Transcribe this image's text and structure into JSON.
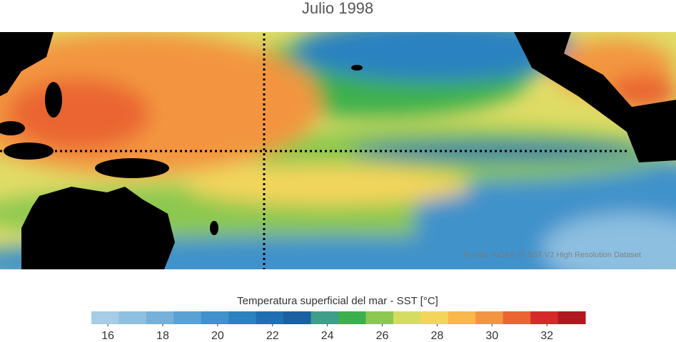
{
  "title": "Julio 1998",
  "source": "Fuente: NOAA OI SST V2 High Resolution Dataset",
  "colorbar": {
    "label": "Temperatura superficial del mar - SST  [°C]",
    "lim": [
      15.4,
      33.4
    ],
    "colors": [
      "#a6cce6",
      "#8dbfe0",
      "#75b1da",
      "#5aa2d3",
      "#3f92cb",
      "#2a82c0",
      "#1f70b2",
      "#1b60a0",
      "#3f9e8a",
      "#3cb04c",
      "#8cc850",
      "#d4dd62",
      "#f4d55c",
      "#f8b84c",
      "#f39540",
      "#ea6530",
      "#d62a2a",
      "#b0181f"
    ],
    "ticks": [
      16,
      18,
      20,
      22,
      24,
      26,
      28,
      30,
      32
    ]
  }
}
